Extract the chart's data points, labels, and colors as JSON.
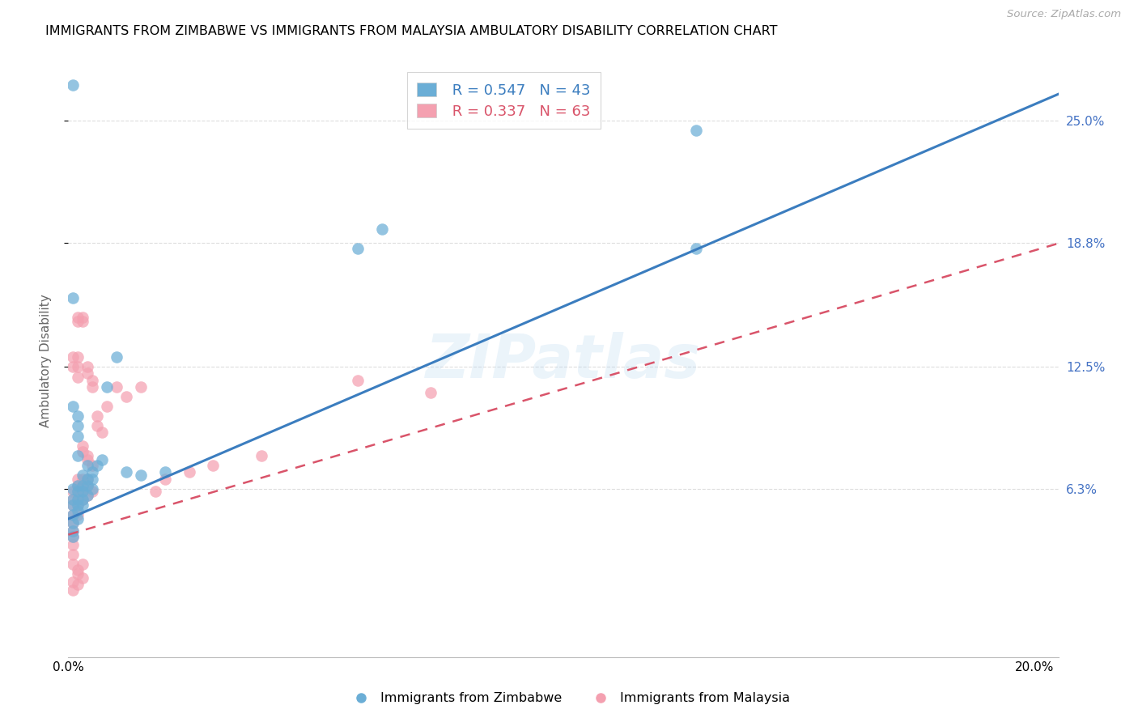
{
  "title": "IMMIGRANTS FROM ZIMBABWE VS IMMIGRANTS FROM MALAYSIA AMBULATORY DISABILITY CORRELATION CHART",
  "source": "Source: ZipAtlas.com",
  "ylabel": "Ambulatory Disability",
  "legend_label1": "Immigrants from Zimbabwe",
  "legend_label2": "Immigrants from Malaysia",
  "r1": "0.547",
  "n1": "43",
  "r2": "0.337",
  "n2": "63",
  "color1": "#6baed6",
  "color2": "#f4a0b0",
  "trendline1_color": "#3b7dbf",
  "trendline2_color": "#d9546a",
  "xmin": 0.0,
  "xmax": 0.205,
  "ymin": -0.022,
  "ymax": 0.278,
  "ytick_vals": [
    0.063,
    0.125,
    0.188,
    0.25
  ],
  "ytick_labels": [
    "6.3%",
    "12.5%",
    "18.8%",
    "25.0%"
  ],
  "xtick_vals": [
    0.0,
    0.05,
    0.1,
    0.15,
    0.2
  ],
  "xtick_labels": [
    "0.0%",
    "",
    "",
    "",
    "20.0%"
  ],
  "watermark": "ZIPatlas",
  "trendline1_slope": 1.05,
  "trendline1_intercept": 0.048,
  "trendline2_slope": 0.72,
  "trendline2_intercept": 0.04,
  "zimbabwe_x": [
    0.001,
    0.001,
    0.001,
    0.001,
    0.001,
    0.001,
    0.001,
    0.001,
    0.002,
    0.002,
    0.002,
    0.002,
    0.002,
    0.002,
    0.002,
    0.003,
    0.003,
    0.003,
    0.003,
    0.003,
    0.004,
    0.004,
    0.004,
    0.004,
    0.005,
    0.005,
    0.005,
    0.006,
    0.007,
    0.008,
    0.01,
    0.012,
    0.015,
    0.02,
    0.065,
    0.13,
    0.06,
    0.13,
    0.001,
    0.002,
    0.002,
    0.002,
    0.001
  ],
  "zimbabwe_y": [
    0.268,
    0.063,
    0.058,
    0.055,
    0.05,
    0.046,
    0.042,
    0.039,
    0.08,
    0.065,
    0.062,
    0.058,
    0.055,
    0.052,
    0.048,
    0.07,
    0.065,
    0.062,
    0.058,
    0.055,
    0.075,
    0.068,
    0.065,
    0.06,
    0.072,
    0.068,
    0.063,
    0.075,
    0.078,
    0.115,
    0.13,
    0.072,
    0.07,
    0.072,
    0.195,
    0.245,
    0.185,
    0.185,
    0.105,
    0.1,
    0.095,
    0.09,
    0.16
  ],
  "malaysia_x": [
    0.001,
    0.001,
    0.001,
    0.001,
    0.001,
    0.001,
    0.001,
    0.001,
    0.001,
    0.001,
    0.002,
    0.002,
    0.002,
    0.002,
    0.002,
    0.002,
    0.002,
    0.002,
    0.003,
    0.003,
    0.003,
    0.003,
    0.003,
    0.003,
    0.004,
    0.004,
    0.004,
    0.004,
    0.004,
    0.005,
    0.005,
    0.005,
    0.006,
    0.006,
    0.007,
    0.008,
    0.01,
    0.012,
    0.015,
    0.018,
    0.02,
    0.025,
    0.03,
    0.04,
    0.06,
    0.075,
    0.001,
    0.001,
    0.002,
    0.002,
    0.002,
    0.003,
    0.003,
    0.004,
    0.004,
    0.005,
    0.002,
    0.003,
    0.001,
    0.002,
    0.001,
    0.003,
    0.002
  ],
  "malaysia_y": [
    0.062,
    0.058,
    0.055,
    0.05,
    0.046,
    0.042,
    0.039,
    0.035,
    0.03,
    0.025,
    0.15,
    0.148,
    0.068,
    0.065,
    0.062,
    0.058,
    0.055,
    0.05,
    0.15,
    0.148,
    0.068,
    0.065,
    0.062,
    0.058,
    0.125,
    0.122,
    0.068,
    0.065,
    0.06,
    0.118,
    0.115,
    0.062,
    0.1,
    0.095,
    0.092,
    0.105,
    0.115,
    0.11,
    0.115,
    0.062,
    0.068,
    0.072,
    0.075,
    0.08,
    0.118,
    0.112,
    0.13,
    0.125,
    0.13,
    0.125,
    0.12,
    0.085,
    0.082,
    0.08,
    0.078,
    0.075,
    0.02,
    0.018,
    0.016,
    0.015,
    0.012,
    0.025,
    0.022
  ]
}
